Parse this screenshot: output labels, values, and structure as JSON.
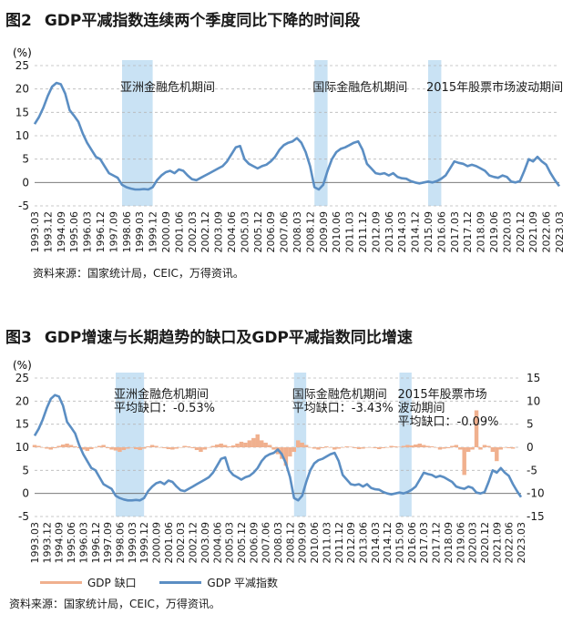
{
  "colors": {
    "line": "#5b8ec3",
    "gap": "#f0b08e",
    "shade": "#c9e2f4",
    "axis": "#333333",
    "grid": "#b8b8b8"
  },
  "figure2": {
    "label": "图2",
    "title": "GDP平减指数连续两个季度同比下降的时间段",
    "source": "资料来源：国家统计局，CEIC，万得资讯。"
  },
  "figure3": {
    "label": "图3",
    "title": "GDP增速与长期趋势的缺口及GDP平减指数同比增速",
    "source": "资料来源：国家统计局，CEIC，万得资讯。"
  },
  "chart_data": [
    {
      "type": "line",
      "ylabel": "(%)",
      "ylim": [
        -5,
        25
      ],
      "yticks": [
        -5,
        0,
        5,
        10,
        15,
        20,
        25
      ],
      "x_tick_labels": [
        "1993.03",
        "1993.12",
        "1994.09",
        "1995.06",
        "1996.03",
        "1996.12",
        "1997.09",
        "1998.06",
        "1999.03",
        "1999.12",
        "2000.09",
        "2001.06",
        "2002.03",
        "2002.12",
        "2003.09",
        "2004.06",
        "2005.03",
        "2005.12",
        "2006.09",
        "2007.06",
        "2008.03",
        "2008.12",
        "2009.09",
        "2010.06",
        "2011.03",
        "2011.12",
        "2012.09",
        "2013.06",
        "2014.03",
        "2014.12",
        "2015.09",
        "2016.06",
        "2017.03",
        "2017.12",
        "2018.09",
        "2019.06",
        "2020.03",
        "2020.12",
        "2021.09",
        "2022.06",
        "2023.03"
      ],
      "shaded_periods": [
        {
          "label": "亚洲金融危机期间",
          "start": "1998.03",
          "end": "1999.12"
        },
        {
          "label": "国际金融危机期间",
          "start": "2009.03",
          "end": "2009.12"
        },
        {
          "label": "2015年股票市场波动期间",
          "start": "2015.09",
          "end": "2016.06"
        }
      ],
      "series": [
        {
          "name": "GDP平减指数",
          "x": [
            1993.0,
            1993.25,
            1993.5,
            1993.75,
            1994.0,
            1994.25,
            1994.5,
            1994.75,
            1995.0,
            1995.25,
            1995.5,
            1995.75,
            1996.0,
            1996.25,
            1996.5,
            1996.75,
            1997.0,
            1997.25,
            1997.5,
            1997.75,
            1998.0,
            1998.25,
            1998.5,
            1998.75,
            1999.0,
            1999.25,
            1999.5,
            1999.75,
            2000.0,
            2000.25,
            2000.5,
            2000.75,
            2001.0,
            2001.25,
            2001.5,
            2001.75,
            2002.0,
            2002.25,
            2002.5,
            2002.75,
            2003.0,
            2003.25,
            2003.5,
            2003.75,
            2004.0,
            2004.25,
            2004.5,
            2004.75,
            2005.0,
            2005.25,
            2005.5,
            2005.75,
            2006.0,
            2006.25,
            2006.5,
            2006.75,
            2007.0,
            2007.25,
            2007.5,
            2007.75,
            2008.0,
            2008.25,
            2008.5,
            2008.75,
            2009.0,
            2009.25,
            2009.5,
            2009.75,
            2010.0,
            2010.25,
            2010.5,
            2010.75,
            2011.0,
            2011.25,
            2011.5,
            2011.75,
            2012.0,
            2012.25,
            2012.5,
            2012.75,
            2013.0,
            2013.25,
            2013.5,
            2013.75,
            2014.0,
            2014.25,
            2014.5,
            2014.75,
            2015.0,
            2015.25,
            2015.5,
            2015.75,
            2016.0,
            2016.25,
            2016.5,
            2016.75,
            2017.0,
            2017.25,
            2017.5,
            2017.75,
            2018.0,
            2018.25,
            2018.5,
            2018.75,
            2019.0,
            2019.25,
            2019.5,
            2019.75,
            2020.0,
            2020.25,
            2020.5,
            2020.75,
            2021.0,
            2021.25,
            2021.5,
            2021.75,
            2022.0,
            2022.25,
            2022.5,
            2022.75,
            2023.0
          ],
          "values": [
            12.5,
            14.0,
            16.0,
            18.5,
            20.5,
            21.3,
            21.0,
            19.0,
            15.5,
            14.3,
            13.0,
            10.5,
            8.5,
            7.0,
            5.5,
            5.0,
            3.5,
            2.0,
            1.5,
            1.0,
            -0.5,
            -1.0,
            -1.3,
            -1.5,
            -1.5,
            -1.4,
            -1.5,
            -1.0,
            0.5,
            1.5,
            2.2,
            2.5,
            2.0,
            2.8,
            2.5,
            1.5,
            0.7,
            0.5,
            1.0,
            1.5,
            2.0,
            2.5,
            3.0,
            3.5,
            4.5,
            6.0,
            7.5,
            7.8,
            5.0,
            4.0,
            3.5,
            3.0,
            3.5,
            3.8,
            4.5,
            5.5,
            7.0,
            8.0,
            8.5,
            8.8,
            9.5,
            8.5,
            6.5,
            3.5,
            -1.0,
            -1.5,
            -0.5,
            2.5,
            5.0,
            6.5,
            7.2,
            7.5,
            8.0,
            8.5,
            8.8,
            7.0,
            4.0,
            3.0,
            2.0,
            1.8,
            2.0,
            1.5,
            2.0,
            1.2,
            0.9,
            0.8,
            0.3,
            0.0,
            -0.2,
            0.0,
            0.2,
            0.0,
            0.3,
            0.8,
            1.5,
            3.0,
            4.5,
            4.2,
            4.0,
            3.5,
            3.8,
            3.5,
            3.0,
            2.5,
            1.5,
            1.2,
            1.0,
            1.5,
            1.2,
            0.2,
            0.0,
            0.3,
            2.5,
            5.0,
            4.5,
            5.5,
            4.5,
            3.8,
            2.0,
            0.5,
            -0.8
          ]
        }
      ]
    },
    {
      "type": "line+bar",
      "ylabel": "(%)",
      "ylim_left": [
        -5,
        25
      ],
      "yticks_left": [
        -5,
        0,
        5,
        10,
        15,
        20,
        25
      ],
      "ylim_right": [
        -15,
        15
      ],
      "yticks_right": [
        -15,
        -10,
        -5,
        0,
        5,
        10,
        15
      ],
      "x_tick_labels": [
        "1993.03",
        "1993.12",
        "1994.09",
        "1995.06",
        "1996.03",
        "1996.12",
        "1997.09",
        "1998.06",
        "1999.03",
        "1999.12",
        "2000.09",
        "2001.06",
        "2002.03",
        "2002.12",
        "2003.09",
        "2004.06",
        "2005.03",
        "2005.12",
        "2006.09",
        "2007.06",
        "2008.03",
        "2008.12",
        "2009.09",
        "2010.06",
        "2011.03",
        "2011.12",
        "2012.09",
        "2013.06",
        "2014.03",
        "2014.12",
        "2015.09",
        "2016.06",
        "2017.03",
        "2017.12",
        "2018.09",
        "2019.06",
        "2020.03",
        "2020.12",
        "2021.09",
        "2022.06",
        "2023.03"
      ],
      "shaded_periods": [
        {
          "label": "亚洲金融危机期间",
          "avg_label": "平均缺口：-0.53%",
          "start": "1998.03",
          "end": "1999.12"
        },
        {
          "label": "国际金融危机期间",
          "avg_label": "平均缺口：-3.43%",
          "start": "2009.03",
          "end": "2009.12"
        },
        {
          "label_lines": [
            "2015年股票市场",
            "波动期间"
          ],
          "avg_label": "平均缺口：-0.09%",
          "start": "2015.09",
          "end": "2016.06"
        }
      ],
      "legend": [
        "GDP 缺口",
        "GDP 平减指数"
      ],
      "series": [
        {
          "name": "GDP 缺口",
          "axis": "right",
          "x_start": 1993.0,
          "x_step": 0.25,
          "values": [
            0.5,
            0.3,
            0.0,
            -0.3,
            -0.5,
            -0.2,
            0.3,
            0.6,
            0.8,
            0.5,
            0.2,
            -0.2,
            -0.5,
            -0.8,
            -0.4,
            0.0,
            0.3,
            0.5,
            -0.2,
            -0.5,
            -0.7,
            -1.0,
            -0.6,
            -0.3,
            0.0,
            -0.4,
            -0.6,
            -0.3,
            0.2,
            0.5,
            0.3,
            0.0,
            -0.2,
            -0.4,
            -0.5,
            -0.3,
            0.0,
            0.3,
            0.2,
            -0.2,
            -0.6,
            -1.0,
            -0.5,
            0.0,
            0.3,
            0.6,
            0.8,
            0.5,
            0.2,
            0.4,
            0.8,
            1.2,
            1.0,
            1.5,
            2.0,
            2.8,
            1.5,
            1.0,
            0.5,
            -0.5,
            -1.5,
            -2.5,
            -4.0,
            -2.0,
            -1.0,
            1.5,
            1.0,
            0.5,
            0.0,
            -0.3,
            -0.5,
            -0.2,
            0.2,
            0.0,
            -0.5,
            -0.3,
            0.0,
            0.2,
            0.1,
            -0.2,
            -0.4,
            -0.3,
            -0.1,
            0.0,
            -0.2,
            -0.4,
            -0.2,
            0.0,
            0.3,
            0.2,
            0.1,
            0.3,
            0.5,
            0.4,
            0.6,
            0.8,
            0.5,
            0.3,
            0.2,
            0.0,
            -0.5,
            -0.3,
            -0.2,
            0.3,
            0.5,
            -0.5,
            -6.0,
            -1.0,
            -0.5,
            8.0,
            -0.5,
            0.5,
            0.3,
            -1.0,
            -3.0,
            -0.5,
            0.0,
            -0.2,
            -0.3
          ]
        },
        {
          "name": "GDP 平减指数",
          "axis": "left",
          "same_as_figure2": true
        }
      ]
    }
  ]
}
